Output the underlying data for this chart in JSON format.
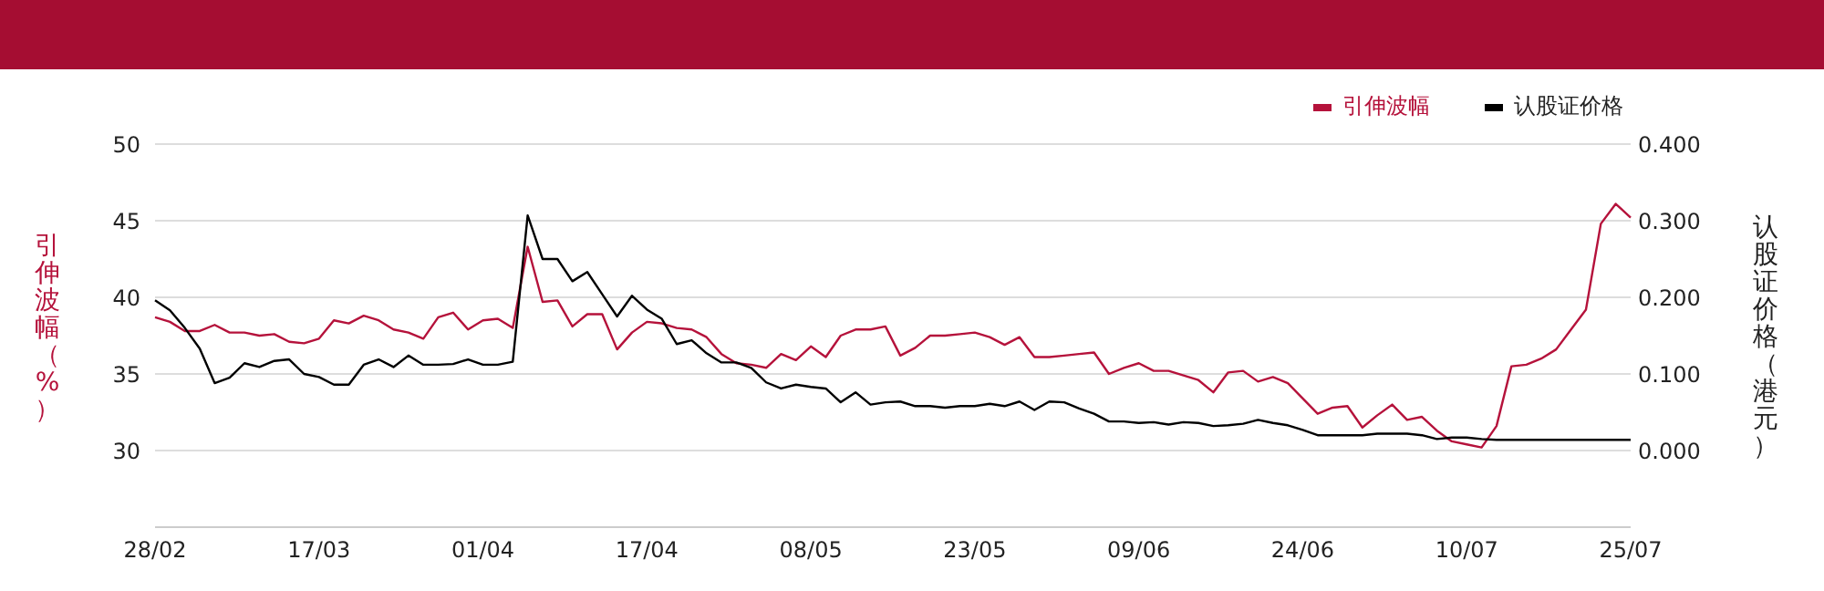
{
  "chart_data": {
    "type": "line",
    "categories": [
      "28/02",
      null,
      null,
      null,
      null,
      null,
      null,
      null,
      null,
      null,
      null,
      "17/03",
      null,
      null,
      null,
      null,
      null,
      null,
      null,
      null,
      null,
      null,
      "01/04",
      null,
      null,
      null,
      null,
      null,
      null,
      null,
      null,
      null,
      null,
      "17/04",
      null,
      null,
      null,
      null,
      null,
      null,
      null,
      null,
      null,
      null,
      "08/05",
      null,
      null,
      null,
      null,
      null,
      null,
      null,
      null,
      null,
      null,
      "23/05",
      null,
      null,
      null,
      null,
      null,
      null,
      null,
      null,
      null,
      null,
      "09/06",
      null,
      null,
      null,
      null,
      null,
      null,
      null,
      null,
      null,
      null,
      "24/06",
      null,
      null,
      null,
      null,
      null,
      null,
      null,
      null,
      null,
      null,
      "10/07",
      null,
      null,
      null,
      null,
      null,
      null,
      null,
      null,
      null,
      null,
      "25/07"
    ],
    "series": [
      {
        "name": "引伸波幅",
        "color": "#b5123b",
        "values": [
          38.7,
          38.4,
          37.8,
          37.8,
          38.2,
          37.7,
          37.7,
          37.5,
          37.6,
          37.1,
          37.0,
          37.3,
          38.5,
          38.3,
          38.8,
          38.5,
          37.9,
          37.7,
          37.3,
          38.7,
          39.0,
          37.9,
          38.5,
          38.6,
          38.0,
          43.3,
          39.7,
          39.8,
          38.1,
          38.9,
          38.9,
          36.6,
          37.7,
          38.4,
          38.3,
          38.0,
          37.9,
          37.4,
          36.3,
          35.7,
          35.6,
          35.4,
          36.3,
          35.9,
          36.8,
          36.1,
          37.5,
          37.9,
          37.9,
          38.1,
          36.2,
          36.7,
          37.5,
          37.5,
          37.6,
          37.7,
          37.4,
          36.9,
          37.4,
          36.1,
          36.1,
          36.2,
          36.3,
          36.4,
          35.0,
          35.4,
          35.7,
          35.2,
          35.2,
          34.9,
          34.6,
          33.8,
          35.1,
          35.2,
          34.5,
          34.8,
          34.4,
          33.4,
          32.4,
          32.8,
          32.9,
          31.5,
          32.3,
          33.0,
          32.0,
          32.2,
          31.3,
          30.6,
          30.4,
          30.2,
          31.6,
          35.5,
          35.6,
          36.0,
          36.6,
          37.9,
          39.2,
          44.8,
          46.1,
          45.2
        ]
      },
      {
        "name": "认股证价格",
        "color": "#000000",
        "axis": "y2",
        "values": [
          0.196,
          0.183,
          0.16,
          0.133,
          0.088,
          0.095,
          0.114,
          0.109,
          0.117,
          0.119,
          0.1,
          0.096,
          0.086,
          0.086,
          0.112,
          0.119,
          0.109,
          0.124,
          0.112,
          0.112,
          0.113,
          0.119,
          0.112,
          0.112,
          0.116,
          0.307,
          0.25,
          0.25,
          0.221,
          0.233,
          0.204,
          0.175,
          0.202,
          0.184,
          0.172,
          0.139,
          0.144,
          0.127,
          0.115,
          0.115,
          0.108,
          0.089,
          0.081,
          0.086,
          0.083,
          0.081,
          0.063,
          0.076,
          0.06,
          0.063,
          0.064,
          0.058,
          0.058,
          0.056,
          0.058,
          0.058,
          0.061,
          0.058,
          0.064,
          0.053,
          0.064,
          0.063,
          0.055,
          0.048,
          0.038,
          0.038,
          0.036,
          0.037,
          0.034,
          0.037,
          0.036,
          0.032,
          0.033,
          0.035,
          0.04,
          0.036,
          0.033,
          0.027,
          0.02,
          0.02,
          0.02,
          0.02,
          0.022,
          0.022,
          0.022,
          0.02,
          0.015,
          0.017,
          0.017,
          0.015,
          0.014,
          0.014,
          0.014,
          0.014,
          0.014,
          0.014,
          0.014,
          0.014,
          0.014,
          0.014
        ]
      }
    ],
    "ylabel": "引伸波幅（%）",
    "y2label": "认股证价格（港元）",
    "ylim": [
      25,
      50
    ],
    "yticks": [
      30,
      35,
      40,
      45,
      50
    ],
    "y2lim": [
      -0.1,
      0.4
    ],
    "y2ticks": [
      {
        "value": 0,
        "label": "0.000"
      },
      {
        "value": 0.1,
        "label": "0.100"
      },
      {
        "value": 0.2,
        "label": "0.200"
      },
      {
        "value": 0.3,
        "label": "0.300"
      },
      {
        "value": 0.4,
        "label": "0.400"
      }
    ],
    "grid": "y",
    "legend": "top right",
    "marker": "none"
  }
}
